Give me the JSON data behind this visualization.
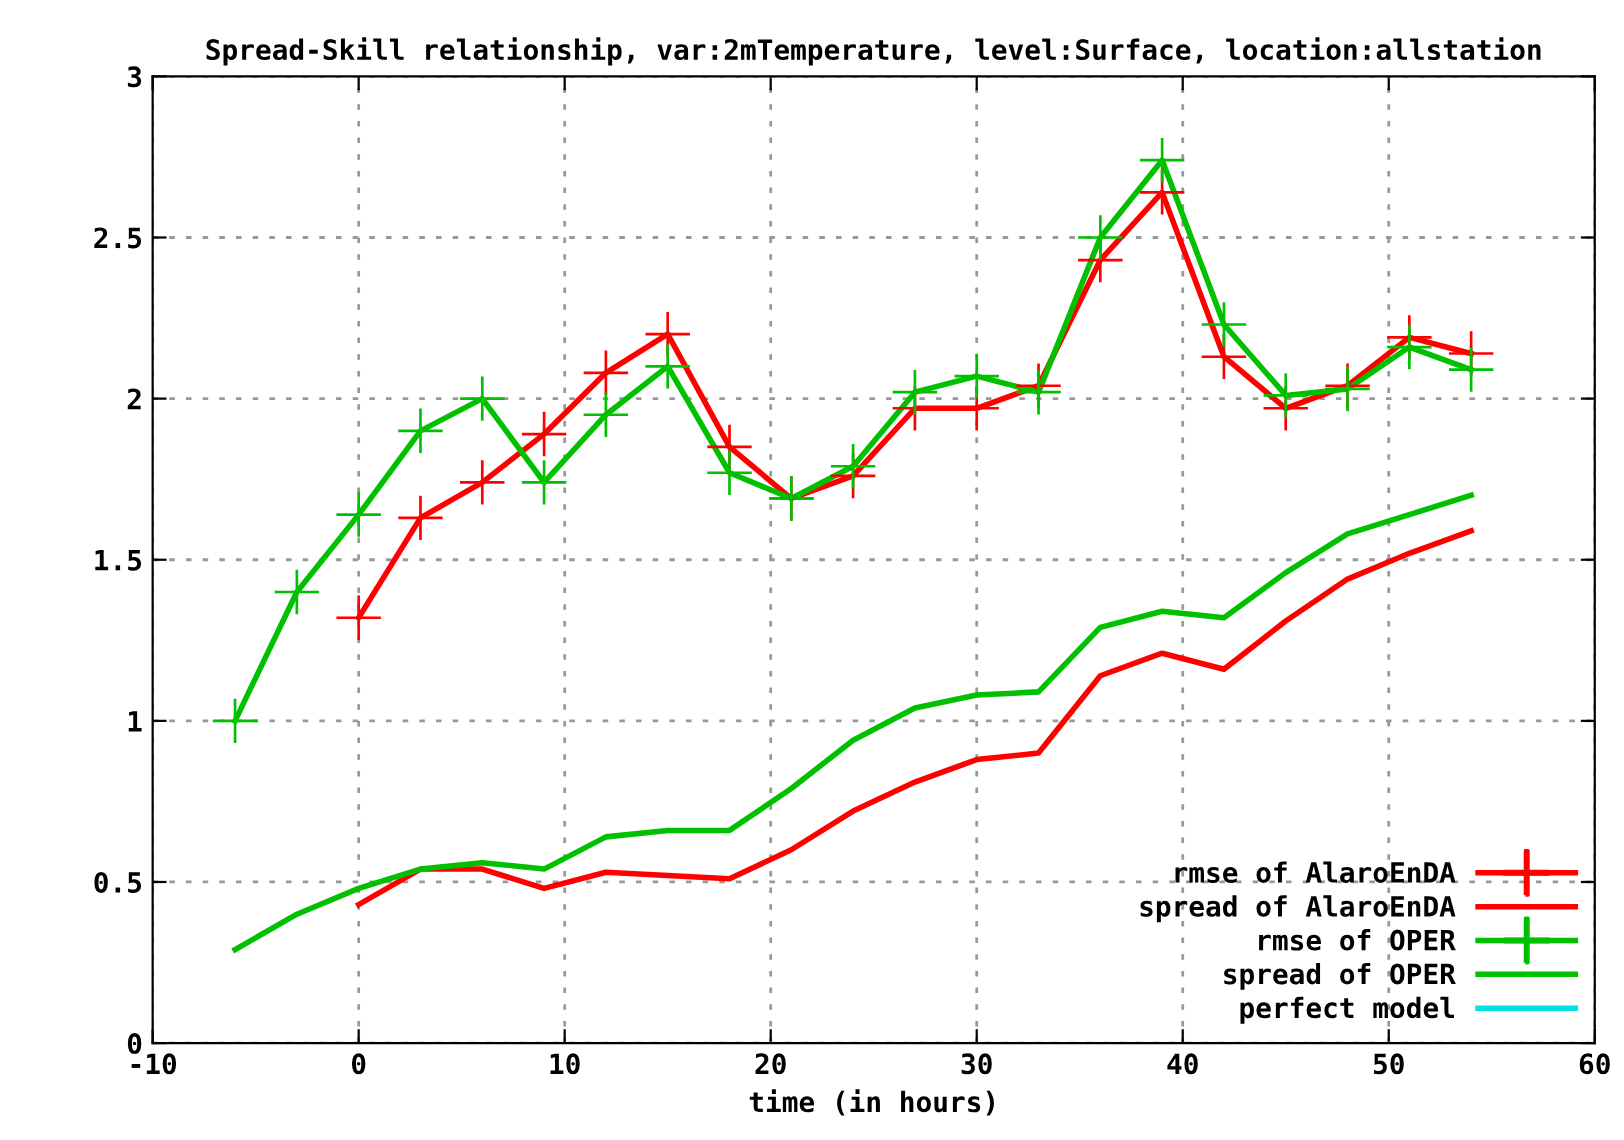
{
  "chart_data": {
    "type": "line",
    "title": "Spread-Skill relationship, var:2mTemperature, level:Surface, location:allstation",
    "xlabel": "time (in hours)",
    "x": [
      -6,
      -3,
      0,
      3,
      6,
      9,
      12,
      15,
      18,
      21,
      24,
      27,
      30,
      33,
      36,
      39,
      42,
      45,
      48,
      51,
      54
    ],
    "series": [
      {
        "name": "rmse of AlaroEnDA",
        "color": "#ff0000",
        "marker": "cross",
        "values": [
          null,
          null,
          1.32,
          1.63,
          1.74,
          1.89,
          2.08,
          2.2,
          1.85,
          1.69,
          1.76,
          1.97,
          1.97,
          2.04,
          2.43,
          2.64,
          2.13,
          1.97,
          2.04,
          2.19,
          2.14
        ]
      },
      {
        "name": "spread of AlaroEnDA",
        "color": "#ff0000",
        "marker": "none",
        "values": [
          null,
          null,
          0.43,
          0.54,
          0.54,
          0.48,
          0.53,
          0.52,
          0.51,
          0.6,
          0.72,
          0.81,
          0.88,
          0.9,
          1.14,
          1.21,
          1.16,
          1.31,
          1.44,
          1.52,
          1.59
        ]
      },
      {
        "name": "rmse of OPER",
        "color": "#00c000",
        "marker": "cross",
        "values": [
          1.0,
          1.4,
          1.64,
          1.9,
          2.0,
          1.74,
          1.95,
          2.1,
          1.77,
          1.69,
          1.79,
          2.02,
          2.07,
          2.02,
          2.5,
          2.74,
          2.23,
          2.01,
          2.03,
          2.16,
          2.09
        ]
      },
      {
        "name": "spread of OPER",
        "color": "#00c000",
        "marker": "none",
        "values": [
          0.29,
          0.4,
          0.48,
          0.54,
          0.56,
          0.54,
          0.64,
          0.66,
          0.66,
          0.79,
          0.94,
          1.04,
          1.08,
          1.09,
          1.29,
          1.34,
          1.32,
          1.46,
          1.58,
          1.64,
          1.7
        ]
      },
      {
        "name": "perfect model",
        "color": "#00e0e0",
        "marker": "none",
        "values": [
          null,
          null,
          null,
          null,
          null,
          null,
          null,
          null,
          null,
          null,
          null,
          null,
          null,
          null,
          null,
          null,
          null,
          null,
          null,
          null,
          null
        ]
      }
    ],
    "xlim": [
      -10,
      60
    ],
    "xticks": [
      -10,
      0,
      10,
      20,
      30,
      40,
      50,
      60
    ],
    "ylim": [
      0,
      3
    ],
    "yticks": [
      0,
      0.5,
      1,
      1.5,
      2,
      2.5,
      3
    ],
    "grid": true,
    "legend": "bottom right",
    "line_style": "solid"
  }
}
